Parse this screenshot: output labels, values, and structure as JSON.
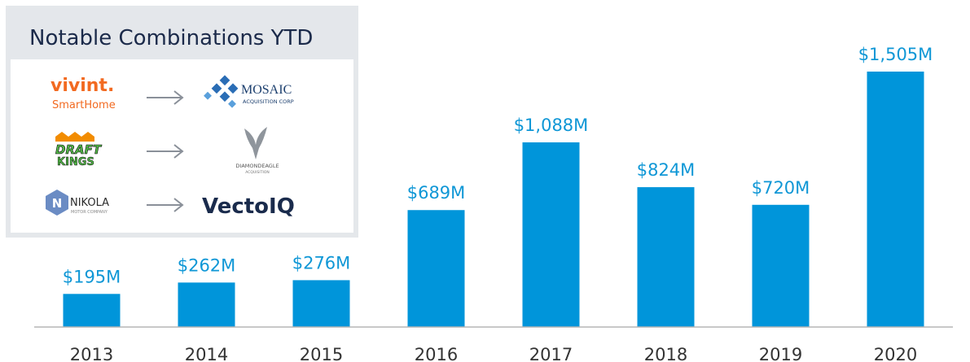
{
  "chart_data": {
    "type": "bar",
    "categories": [
      "2013",
      "2014",
      "2015",
      "2016",
      "2017",
      "2018",
      "2019",
      "2020"
    ],
    "values": [
      195,
      262,
      276,
      689,
      1088,
      824,
      720,
      1505
    ],
    "value_labels": [
      "$195M",
      "$262M",
      "$276M",
      "$689M",
      "$1,088M",
      "$824M",
      "$720M",
      "$1,505M"
    ],
    "color": "#0095da"
  },
  "panel": {
    "title": "Notable Combinations YTD",
    "rows": [
      {
        "from": [
          "vivint.",
          "SmartHome"
        ],
        "to": [
          "MOSAIC",
          "ACQUISITION CORP"
        ]
      },
      {
        "from": [
          "DRAFT",
          "KINGS"
        ],
        "to": [
          "DIAMONDEAGLE",
          "ACQUISITION"
        ]
      },
      {
        "from": [
          "NIKOLA",
          "MOTOR COMPANY"
        ],
        "to": [
          "VectoIQ"
        ]
      }
    ]
  }
}
